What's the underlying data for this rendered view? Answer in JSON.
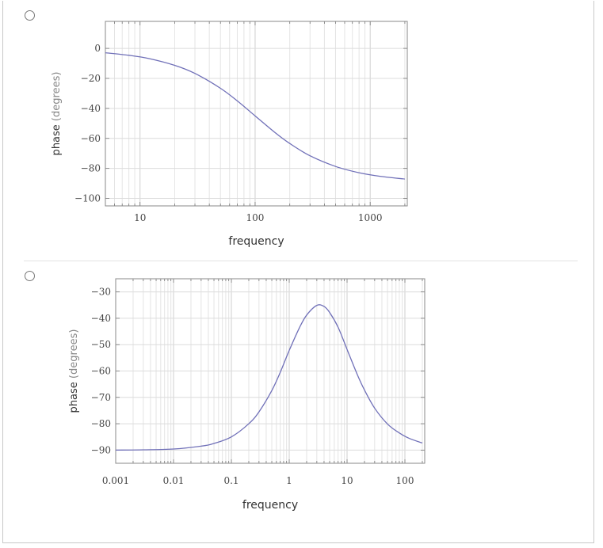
{
  "options": [
    {
      "id": "option-1"
    },
    {
      "id": "option-2"
    }
  ],
  "chart_data": [
    {
      "type": "line",
      "xscale": "log",
      "xlabel": "frequency",
      "ylabel": "phase",
      "ylabel_unit": "(degrees)",
      "xlim": [
        5,
        2100
      ],
      "ylim": [
        -105,
        18
      ],
      "xticks": [
        10,
        100,
        1000
      ],
      "xtick_labels": [
        "10",
        "100",
        "1000"
      ],
      "yticks": [
        0,
        -20,
        -40,
        -60,
        -80,
        -100
      ],
      "ytick_labels": [
        "0",
        "−20",
        "−40",
        "−60",
        "−80",
        "−100"
      ],
      "grid": true,
      "series": [
        {
          "color": "#7070b8",
          "x": [
            5,
            8,
            12,
            20,
            30,
            50,
            70,
            100,
            150,
            200,
            300,
            500,
            800,
            1200,
            2000
          ],
          "y": [
            -2.9,
            -4.6,
            -6.8,
            -11.3,
            -16.7,
            -26.6,
            -35.0,
            -45.0,
            -56.3,
            -63.4,
            -71.6,
            -78.7,
            -82.9,
            -85.2,
            -87.1
          ]
        }
      ]
    },
    {
      "type": "line",
      "xscale": "log",
      "xlabel": "frequency",
      "ylabel": "phase",
      "ylabel_unit": "(degrees)",
      "xlim": [
        0.001,
        220
      ],
      "ylim": [
        -95,
        -25
      ],
      "xticks": [
        0.001,
        0.01,
        0.1,
        1,
        10,
        100
      ],
      "xtick_labels": [
        "0.001",
        "0.01",
        "0.1",
        "1",
        "10",
        "100"
      ],
      "yticks": [
        -30,
        -40,
        -50,
        -60,
        -70,
        -80,
        -90
      ],
      "ytick_labels": [
        "−30",
        "−40",
        "−50",
        "−60",
        "−70",
        "−80",
        "−90"
      ],
      "grid": true,
      "series": [
        {
          "color": "#7070b8",
          "x": [
            0.001,
            0.003,
            0.01,
            0.03,
            0.05,
            0.1,
            0.2,
            0.3,
            0.5,
            0.7,
            1,
            1.5,
            2,
            3,
            4,
            5,
            7,
            10,
            15,
            20,
            30,
            50,
            80,
            120,
            200
          ],
          "y": [
            -90,
            -89.9,
            -89.6,
            -88.5,
            -87.5,
            -85,
            -80,
            -75.5,
            -67.4,
            -60.5,
            -52.2,
            -43.6,
            -38.8,
            -35.1,
            -35.5,
            -37.8,
            -43.4,
            -51.8,
            -61.3,
            -67.2,
            -74.1,
            -80.1,
            -83.5,
            -85.6,
            -87.3
          ]
        }
      ]
    }
  ]
}
